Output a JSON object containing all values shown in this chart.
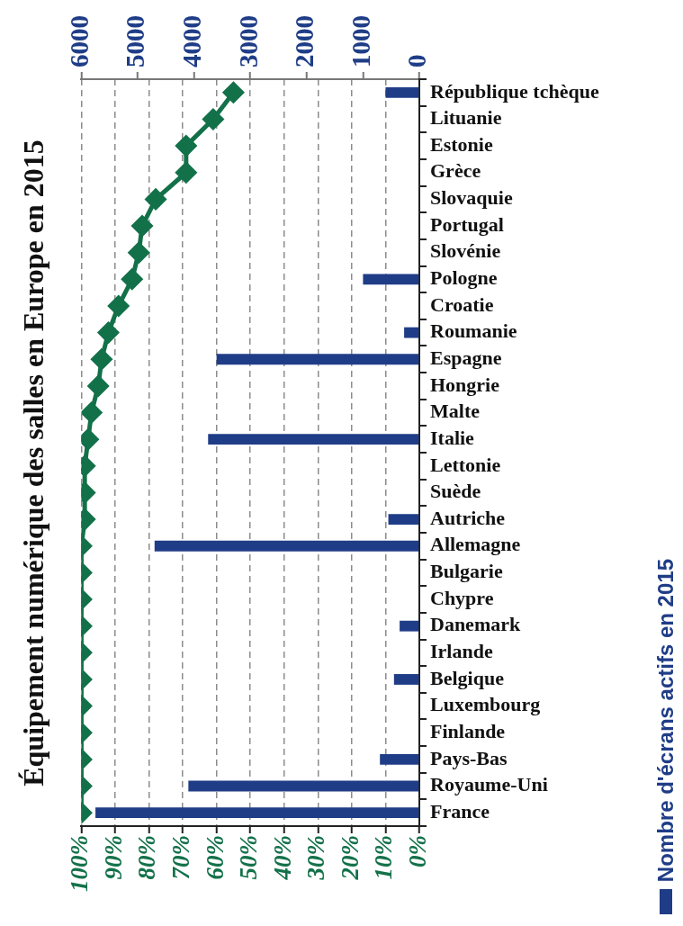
{
  "chart_data": {
    "type": "bar",
    "orientation": "horizontal",
    "title": "Équipement numérique des salles en Europe en 2015",
    "categories": [
      "République tchèque",
      "Lituanie",
      "Estonie",
      "Grèce",
      "Slovaquie",
      "Portugal",
      "Slovénie",
      "Pologne",
      "Croatie",
      "Roumanie",
      "Espagne",
      "Hongrie",
      "Malte",
      "Italie",
      "Lettonie",
      "Suède",
      "Autriche",
      "Allemagne",
      "Bulgarie",
      "Chypre",
      "Danemark",
      "Irlande",
      "Belgique",
      "Luxembourg",
      "Finlande",
      "Pays-Bas",
      "Royaume-Uni",
      "France"
    ],
    "series": [
      {
        "name": "Nombre d'écrans actifs en 2015",
        "color": "#1f3d87",
        "axis": "x2",
        "values": [
          600,
          null,
          null,
          null,
          null,
          null,
          null,
          1000,
          null,
          270,
          3600,
          null,
          null,
          3750,
          null,
          null,
          550,
          4700,
          null,
          null,
          350,
          null,
          450,
          null,
          null,
          700,
          4100,
          5750
        ]
      },
      {
        "type": "line",
        "color": "#13714a",
        "values": [
          55,
          61,
          69,
          69,
          78,
          82,
          83,
          85,
          89,
          92,
          94,
          95,
          97,
          98,
          99,
          99,
          99,
          100,
          100,
          100,
          100,
          100,
          100,
          100,
          100,
          100,
          100,
          100
        ]
      }
    ],
    "xlim": [
      100,
      0
    ],
    "xticks": [
      {
        "value": 100,
        "label": "100%"
      },
      {
        "value": 90,
        "label": "90%"
      },
      {
        "value": 80,
        "label": "80%"
      },
      {
        "value": 70,
        "label": "70%"
      },
      {
        "value": 60,
        "label": "60%"
      },
      {
        "value": 50,
        "label": "50%"
      },
      {
        "value": 40,
        "label": "40%"
      },
      {
        "value": 30,
        "label": "30%"
      },
      {
        "value": 20,
        "label": "20%"
      },
      {
        "value": 10,
        "label": "10%"
      },
      {
        "value": 0,
        "label": "0%"
      }
    ],
    "x2lim": [
      6000,
      0
    ],
    "x2ticks": [
      6000,
      5000,
      4000,
      3000,
      2000,
      1000,
      0
    ],
    "grid": "x",
    "legend": "right",
    "marker": "diamond"
  }
}
